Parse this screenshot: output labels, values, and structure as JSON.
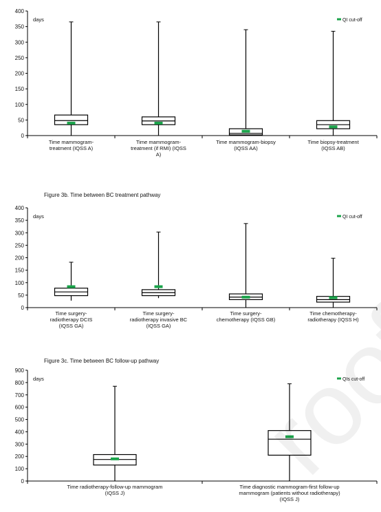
{
  "figures": {
    "b_title": "Figure 3b. Time between BC treatment pathway",
    "c_title": "Figure 3c. Time between BC follow-up pathway"
  },
  "watermark": "roof",
  "chart_data": [
    {
      "type": "box",
      "title": "",
      "ylabel": "days",
      "ylim": [
        0,
        400
      ],
      "yticks": [
        0,
        50,
        100,
        150,
        200,
        250,
        300,
        350,
        400
      ],
      "legend": "QI cut-off",
      "legend_position": "top-right",
      "colors": {
        "box": "#000000",
        "cutoff": "#1aa34a"
      },
      "categories": [
        "Time mammogram-treatment (IQSS A)",
        "Time mammogram-treatment (if RMI) (IQSS A)",
        "Time mammogram-biopsy (IQSS AA)",
        "Time biopsy-treatment (IQSS AB)"
      ],
      "category_lines": [
        [
          "Time mammogram-",
          "treatment (IQSS A)"
        ],
        [
          "Time mammogram-",
          "treatment (if RMI) (IQSS",
          "A)"
        ],
        [
          "Time mammogram-biopsy",
          "(IQSS AA)"
        ],
        [
          "Time biopsy-treatment",
          "(IQSS AB)"
        ]
      ],
      "boxes": [
        {
          "min": 0,
          "q1": 35,
          "median": 48,
          "q3": 66,
          "max": 365,
          "cutoff": 40
        },
        {
          "min": 0,
          "q1": 35,
          "median": 47,
          "q3": 60,
          "max": 365,
          "cutoff": 40
        },
        {
          "min": 0,
          "q1": 2,
          "median": 7,
          "q3": 22,
          "max": 340,
          "cutoff": 14
        },
        {
          "min": 0,
          "q1": 22,
          "median": 35,
          "q3": 48,
          "max": 335,
          "cutoff": 28
        }
      ]
    },
    {
      "type": "box",
      "title": "Figure 3b. Time between BC treatment pathway",
      "ylabel": "days",
      "ylim": [
        0,
        400
      ],
      "yticks": [
        0,
        50,
        100,
        150,
        200,
        250,
        300,
        350,
        400
      ],
      "legend": "QI cut-off",
      "legend_position": "top-right",
      "colors": {
        "box": "#000000",
        "cutoff": "#1aa34a"
      },
      "categories": [
        "Time surgery-radiotherapy DCIS (IQSS GA)",
        "Time surgery-radiotherapy invasive BC (IQSS GA)",
        "Time surgery-chemotherapy (IQSS GB)",
        "Time chemotherapy-radiotherapy (IQSS H)"
      ],
      "category_lines": [
        [
          "Time surgery-",
          "radiotherapy DCIS",
          "(IQSS GA)"
        ],
        [
          "Time surgery-",
          "radiotherapy invasive BC",
          "(IQSS GA)"
        ],
        [
          "Time surgery-",
          "chemotherapy (IQSS GB)"
        ],
        [
          "Time chemotherapy-",
          "radiotherapy (IQSS H)"
        ]
      ],
      "boxes": [
        {
          "min": 28,
          "q1": 48,
          "median": 63,
          "q3": 78,
          "max": 182,
          "cutoff": 84
        },
        {
          "min": 38,
          "q1": 48,
          "median": 60,
          "q3": 72,
          "max": 303,
          "cutoff": 84
        },
        {
          "min": 0,
          "q1": 32,
          "median": 42,
          "q3": 55,
          "max": 337,
          "cutoff": 42
        },
        {
          "min": 0,
          "q1": 22,
          "median": 32,
          "q3": 45,
          "max": 198,
          "cutoff": 40
        }
      ]
    },
    {
      "type": "box",
      "title": "Figure 3c. Time between BC follow-up pathway",
      "ylabel": "days",
      "ylim": [
        0,
        900
      ],
      "yticks": [
        0,
        100,
        200,
        300,
        400,
        500,
        600,
        700,
        800,
        900
      ],
      "legend": "QIs cut-off",
      "legend_position": "top-right",
      "colors": {
        "box": "#000000",
        "cutoff": "#1aa34a"
      },
      "categories": [
        "Time radiotherapy-follow-up mammogram (IQSS J)",
        "Time diagnostic mammogram-first follow-up mammogram (patients without radiotherapy) (IQSS J)"
      ],
      "category_lines": [
        [
          "Time radiotherapy-follow-up mammogram",
          "(IQSS J)"
        ],
        [
          "Time diagnostic mammogram-first follow-up",
          "mammogram (patients without radiotherapy)",
          "(IQSS J)"
        ]
      ],
      "boxes": [
        {
          "min": 0,
          "q1": 130,
          "median": 175,
          "q3": 215,
          "max": 770,
          "cutoff": 180
        },
        {
          "min": 0,
          "q1": 210,
          "median": 340,
          "q3": 410,
          "max": 790,
          "cutoff": 360
        }
      ]
    }
  ]
}
